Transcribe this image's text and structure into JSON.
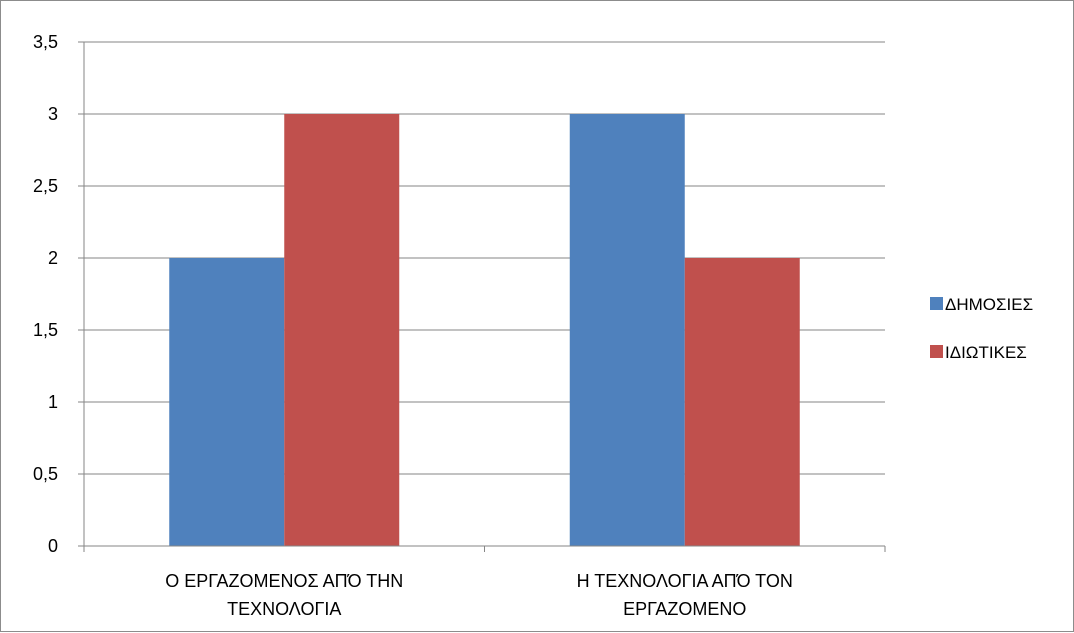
{
  "chart_data": {
    "type": "bar",
    "categories": [
      [
        "Ο ΕΡΓΑΖΟΜΕΝΟΣ ΑΠΌ ΤΗΝ",
        "ΤΕΧΝΟΛΟΓΙΑ"
      ],
      [
        "Η ΤΕΧΝΟΛΟΓΙΑ ΑΠΌ ΤΟΝ",
        "ΕΡΓΑΖΟΜΕΝΟ"
      ]
    ],
    "series": [
      {
        "name": "ΔΗΜΟΣΙΕΣ",
        "values": [
          2,
          3
        ],
        "color": "#4f81bd"
      },
      {
        "name": "ΙΔΙΩΤΙΚΕΣ",
        "values": [
          3,
          2
        ],
        "color": "#c0504d"
      }
    ],
    "ylim": [
      0,
      3.5
    ],
    "yticks": [
      "0",
      "0,5",
      "1",
      "1,5",
      "2",
      "2,5",
      "3",
      "3,5"
    ],
    "grid": true,
    "legend": "right"
  }
}
